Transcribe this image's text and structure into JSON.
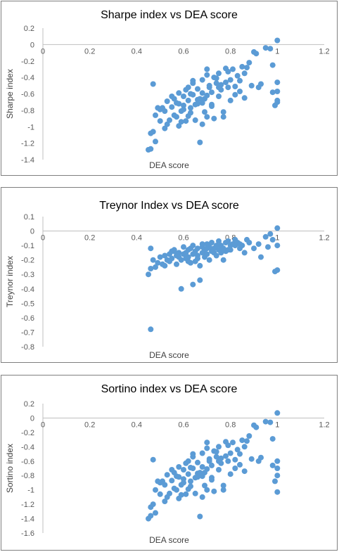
{
  "chart_data": [
    {
      "type": "scatter",
      "title": "Sharpe index vs DEA score",
      "xlabel": "DEA score",
      "ylabel": "Sharpe index",
      "xlim": [
        0,
        1.2
      ],
      "ylim": [
        -1.4,
        0.2
      ],
      "xticks": [
        "0",
        "0.2",
        "0.4",
        "0.6",
        "0.8",
        "1",
        "1.2"
      ],
      "yticks": [
        "0.2",
        "0",
        "-0.2",
        "-0.4",
        "-0.6",
        "-0.8",
        "-1",
        "-1.2",
        "-1.4"
      ],
      "grid": false,
      "color": "#5b9bd5",
      "x": [
        0.45,
        0.46,
        0.46,
        0.47,
        0.47,
        0.48,
        0.49,
        0.5,
        0.5,
        0.51,
        0.52,
        0.53,
        0.54,
        0.55,
        0.55,
        0.56,
        0.57,
        0.58,
        0.58,
        0.59,
        0.6,
        0.6,
        0.61,
        0.62,
        0.62,
        0.63,
        0.64,
        0.64,
        0.65,
        0.66,
        0.66,
        0.67,
        0.68,
        0.68,
        0.69,
        0.7,
        0.7,
        0.71,
        0.72,
        0.72,
        0.73,
        0.74,
        0.75,
        0.75,
        0.76,
        0.77,
        0.78,
        0.78,
        0.79,
        0.8,
        0.81,
        0.82,
        0.83,
        0.84,
        0.85,
        0.86,
        0.88,
        0.9,
        0.92,
        0.95,
        0.97,
        0.98,
        0.99,
        1.0,
        1.0,
        1.0,
        1.0,
        0.53,
        0.57,
        0.6,
        0.63,
        0.66,
        0.69,
        0.71,
        0.74,
        0.77,
        0.8,
        0.84,
        0.56,
        0.59,
        0.62,
        0.65,
        0.68,
        0.7,
        0.73,
        0.76,
        0.79,
        0.82,
        0.87,
        0.93,
        0.61,
        0.64,
        0.67,
        0.7,
        0.72,
        0.75,
        0.68,
        0.63,
        0.58,
        0.86,
        0.89,
        0.91,
        0.52,
        0.48,
        0.98,
        1.0
      ],
      "y": [
        -1.28,
        -1.27,
        -1.08,
        -0.48,
        -1.06,
        -0.86,
        -0.77,
        -0.93,
        -0.79,
        -0.77,
        -0.81,
        -0.69,
        -0.92,
        -0.76,
        -0.63,
        -0.86,
        -0.71,
        -0.59,
        -0.99,
        -0.81,
        -0.74,
        -0.63,
        -0.55,
        -0.87,
        -0.68,
        -0.77,
        -0.61,
        -0.44,
        -0.73,
        -0.54,
        -0.67,
        -1.19,
        -0.59,
        -0.43,
        -0.82,
        -0.62,
        -0.37,
        -0.5,
        -0.73,
        -0.58,
        -0.4,
        -0.47,
        -0.63,
        -0.35,
        -0.55,
        -0.82,
        -0.46,
        -0.29,
        -0.52,
        -0.43,
        -0.3,
        -0.61,
        -0.38,
        -0.57,
        -0.27,
        -0.35,
        -0.22,
        -0.09,
        -0.52,
        -0.04,
        -0.05,
        -0.25,
        -0.74,
        0.05,
        -0.46,
        -0.57,
        -0.7,
        -0.97,
        -0.88,
        -0.79,
        -0.83,
        -0.72,
        -0.66,
        -0.52,
        -0.41,
        -0.88,
        -0.68,
        -0.44,
        -0.66,
        -0.94,
        -0.52,
        -0.92,
        -0.71,
        -0.3,
        -0.9,
        -0.49,
        -0.33,
        -0.51,
        -0.28,
        -0.48,
        -0.93,
        -0.47,
        -0.66,
        -0.88,
        -0.75,
        -0.52,
        -0.97,
        -0.6,
        -0.72,
        -0.65,
        -0.5,
        -0.11,
        -1.02,
        -1.18,
        -0.58,
        -0.68
      ]
    },
    {
      "type": "scatter",
      "title": "Treynor Index vs DEA score",
      "xlabel": "DEA score",
      "ylabel": "Treynor index",
      "xlim": [
        0,
        1.2
      ],
      "ylim": [
        -0.8,
        0.1
      ],
      "xticks": [
        "0",
        "0.2",
        "0.4",
        "0.6",
        "0.8",
        "1",
        "1.2"
      ],
      "yticks": [
        "0.1",
        "0",
        "-0.1",
        "-0.2",
        "-0.3",
        "-0.4",
        "-0.5",
        "-0.6",
        "-0.7",
        "-0.8"
      ],
      "grid": false,
      "color": "#5b9bd5",
      "x": [
        0.45,
        0.46,
        0.46,
        0.46,
        0.47,
        0.48,
        0.49,
        0.5,
        0.51,
        0.52,
        0.53,
        0.54,
        0.55,
        0.56,
        0.57,
        0.58,
        0.59,
        0.6,
        0.6,
        0.61,
        0.62,
        0.62,
        0.63,
        0.64,
        0.64,
        0.65,
        0.66,
        0.66,
        0.67,
        0.68,
        0.68,
        0.69,
        0.7,
        0.7,
        0.71,
        0.72,
        0.72,
        0.73,
        0.74,
        0.75,
        0.75,
        0.76,
        0.77,
        0.78,
        0.78,
        0.79,
        0.8,
        0.81,
        0.82,
        0.83,
        0.84,
        0.85,
        0.86,
        0.88,
        0.9,
        0.92,
        0.95,
        0.97,
        0.98,
        0.99,
        1.0,
        1.0,
        1.0,
        0.59,
        0.64,
        0.67,
        0.54,
        0.57,
        0.61,
        0.65,
        0.69,
        0.73,
        0.77,
        0.8,
        0.84,
        0.56,
        0.63,
        0.71,
        0.74,
        0.79,
        0.87,
        0.93,
        0.96,
        0.52,
        0.55,
        0.58,
        0.62,
        0.66,
        0.68,
        0.7,
        0.76,
        0.82
      ],
      "y": [
        -0.3,
        -0.68,
        -0.26,
        -0.12,
        -0.2,
        -0.25,
        -0.22,
        -0.18,
        -0.23,
        -0.17,
        -0.2,
        -0.16,
        -0.19,
        -0.14,
        -0.17,
        -0.15,
        -0.2,
        -0.16,
        -0.11,
        -0.15,
        -0.13,
        -0.18,
        -0.12,
        -0.16,
        -0.1,
        -0.14,
        -0.12,
        -0.17,
        -0.24,
        -0.11,
        -0.15,
        -0.13,
        -0.09,
        -0.16,
        -0.11,
        -0.14,
        -0.08,
        -0.12,
        -0.1,
        -0.13,
        -0.07,
        -0.1,
        -0.12,
        -0.08,
        -0.14,
        -0.07,
        -0.1,
        -0.09,
        -0.06,
        -0.08,
        -0.12,
        -0.1,
        -0.15,
        -0.08,
        -0.12,
        -0.09,
        -0.04,
        -0.02,
        -0.06,
        -0.28,
        0.02,
        -0.1,
        -0.27,
        -0.4,
        -0.37,
        -0.34,
        -0.21,
        -0.23,
        -0.19,
        -0.21,
        -0.18,
        -0.15,
        -0.2,
        -0.13,
        -0.09,
        -0.13,
        -0.22,
        -0.2,
        -0.17,
        -0.13,
        -0.06,
        -0.18,
        -0.11,
        -0.24,
        -0.14,
        -0.18,
        -0.21,
        -0.19,
        -0.09,
        -0.12,
        -0.15,
        -0.1
      ]
    },
    {
      "type": "scatter",
      "title": "Sortino index vs DEA score",
      "xlabel": "DEA score",
      "ylabel": "Sortino index",
      "xlim": [
        0,
        1.2
      ],
      "ylim": [
        -1.6,
        0.2
      ],
      "xticks": [
        "0",
        "0.2",
        "0.4",
        "0.6",
        "0.8",
        "1",
        "1.2"
      ],
      "yticks": [
        "0.2",
        "0",
        "-0.2",
        "-0.4",
        "-0.6",
        "-0.8",
        "-1",
        "-1.2",
        "-1.4",
        "-1.6"
      ],
      "grid": false,
      "color": "#5b9bd5",
      "x": [
        0.45,
        0.46,
        0.46,
        0.47,
        0.47,
        0.48,
        0.49,
        0.5,
        0.5,
        0.51,
        0.52,
        0.53,
        0.54,
        0.55,
        0.55,
        0.56,
        0.57,
        0.58,
        0.58,
        0.59,
        0.6,
        0.6,
        0.61,
        0.62,
        0.62,
        0.63,
        0.64,
        0.64,
        0.65,
        0.66,
        0.66,
        0.67,
        0.68,
        0.68,
        0.69,
        0.7,
        0.7,
        0.71,
        0.72,
        0.72,
        0.73,
        0.74,
        0.75,
        0.75,
        0.76,
        0.77,
        0.78,
        0.78,
        0.79,
        0.8,
        0.81,
        0.82,
        0.83,
        0.84,
        0.85,
        0.86,
        0.88,
        0.9,
        0.92,
        0.95,
        0.97,
        0.98,
        0.99,
        1.0,
        1.0,
        1.0,
        1.0,
        0.53,
        0.57,
        0.6,
        0.63,
        0.66,
        0.69,
        0.71,
        0.74,
        0.77,
        0.8,
        0.84,
        0.56,
        0.59,
        0.62,
        0.65,
        0.68,
        0.7,
        0.73,
        0.76,
        0.79,
        0.82,
        0.87,
        0.93,
        0.61,
        0.64,
        0.67,
        0.7,
        0.72,
        0.75,
        0.68,
        0.63,
        0.58,
        0.86,
        0.89,
        0.91,
        0.52,
        0.48,
        0.98,
        1.0
      ],
      "y": [
        -1.4,
        -1.36,
        -1.24,
        -0.58,
        -1.2,
        -1.0,
        -0.88,
        -1.06,
        -0.9,
        -0.88,
        -0.93,
        -0.79,
        -1.05,
        -0.87,
        -0.72,
        -0.98,
        -0.81,
        -0.68,
        -1.12,
        -0.93,
        -0.85,
        -0.72,
        -0.63,
        -0.99,
        -0.78,
        -0.88,
        -0.7,
        -0.5,
        -0.83,
        -0.62,
        -0.77,
        -1.37,
        -0.68,
        -0.49,
        -0.94,
        -0.71,
        -0.42,
        -0.57,
        -0.83,
        -0.66,
        -0.46,
        -0.54,
        -0.72,
        -0.4,
        -0.63,
        -0.94,
        -0.53,
        -0.33,
        -0.6,
        -0.49,
        -0.34,
        -0.7,
        -0.44,
        -0.65,
        -0.31,
        -0.4,
        -0.25,
        -0.1,
        -0.6,
        -0.05,
        -0.06,
        -0.29,
        -0.88,
        0.07,
        -0.6,
        -0.7,
        -0.8,
        -1.1,
        -1.0,
        -0.9,
        -0.95,
        -0.82,
        -0.76,
        -0.6,
        -0.47,
        -1.0,
        -0.78,
        -0.5,
        -0.76,
        -1.07,
        -0.6,
        -1.05,
        -0.81,
        -0.34,
        -1.02,
        -0.56,
        -0.38,
        -0.58,
        -0.32,
        -0.55,
        -1.06,
        -0.54,
        -0.76,
        -1.0,
        -0.86,
        -0.6,
        -1.1,
        -0.69,
        -0.82,
        -0.74,
        -0.57,
        -0.13,
        -1.16,
        -1.32,
        -0.66,
        -1.03
      ]
    }
  ]
}
